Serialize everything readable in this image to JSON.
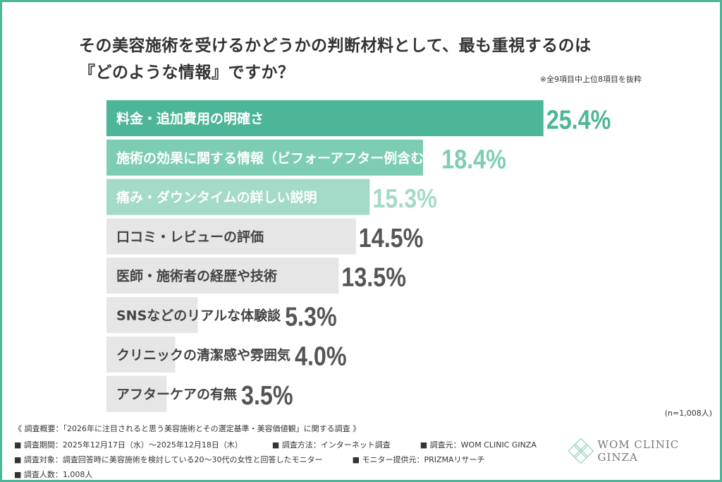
{
  "title_lines": [
    "その美容施術を受けるかどうかの判断材料として、最も重視するのは",
    "『どのような情報』ですか？"
  ],
  "note": "※全9項目中上位8項目を抜粋",
  "sample": "(n=1,008人)",
  "footer": {
    "heading": "《 調査概要：「2026年に注目されると思う美容施術とその選定基準・美容価値観」に関する調査 》",
    "period": "■ 調査期間：2025年12月17日（水）～2025年12月18日（木）",
    "method": "■ 調査方法：インターネット調査",
    "source": "■ 調査元：WOM CLINIC GINZA",
    "target": "■ 調査対象：調査回答時に美容施術を検討している20～30代の女性と回答したモニター",
    "provider": "■ モニター提供元：PRIZMAリサーチ",
    "count": "■ 調査人数：1,008人"
  },
  "logo": {
    "text": "WOM CLINIC GINZA"
  },
  "colors": {
    "border": "#4db598",
    "rank1": "#4db598",
    "rank2": "#7ccdb3",
    "rank3": "#a4dac8",
    "other": "#e6e6e6",
    "other_value": "#555555"
  },
  "chart_data": {
    "type": "bar",
    "orientation": "horizontal",
    "categories": [
      "料金・追加費用の明確さ",
      "施術の効果に関する情報（ビフォーアフター例含む）",
      "痛み・ダウンタイムの詳しい説明",
      "口コミ・レビューの評価",
      "医師・施術者の経歴や技術",
      "SNSなどのリアルな体験談",
      "クリニックの清潔感や雰囲気",
      "アフターケアの有無"
    ],
    "values": [
      25.4,
      18.4,
      15.3,
      14.5,
      13.5,
      5.3,
      4.0,
      3.5
    ],
    "labels": [
      "25.4%",
      "18.4%",
      "15.3%",
      "14.5%",
      "13.5%",
      "5.3%",
      "4.0%",
      "3.5%"
    ],
    "unit": "%",
    "grid": false
  }
}
